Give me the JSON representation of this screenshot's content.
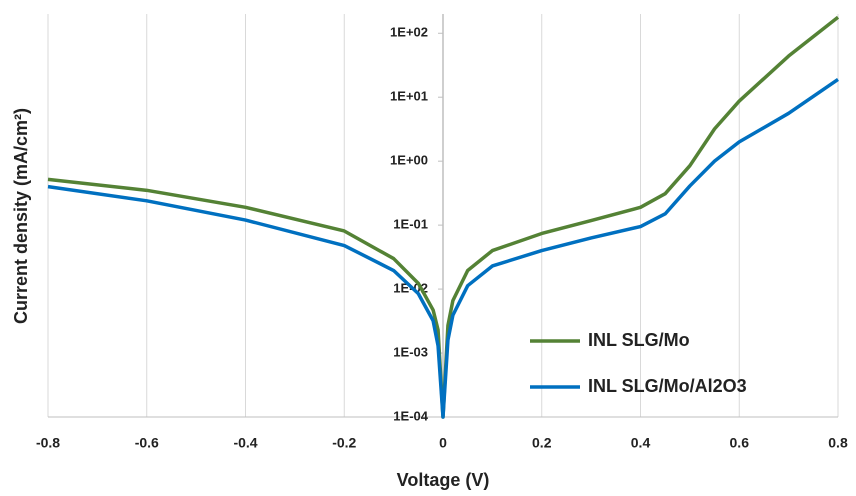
{
  "chart_data": {
    "type": "line",
    "x_label": "Voltage (V)",
    "y_label": "Current density (mA/cm²)",
    "x": [
      -0.8,
      -0.6,
      -0.4,
      -0.2,
      -0.1,
      -0.05,
      -0.02,
      -0.01,
      0,
      0.01,
      0.02,
      0.05,
      0.1,
      0.2,
      0.3,
      0.4,
      0.45,
      0.5,
      0.55,
      0.6,
      0.7,
      0.8
    ],
    "series": [
      {
        "name": "INL SLG/Mo",
        "color": "#548235",
        "values": [
          0.52,
          0.35,
          0.19,
          0.081,
          0.03,
          0.0123,
          0.0047,
          0.0023,
          0.0001,
          0.0027,
          0.0066,
          0.0195,
          0.04,
          0.074,
          0.118,
          0.19,
          0.31,
          0.85,
          3.2,
          8.7,
          44,
          178
        ]
      },
      {
        "name": "INL SLG/Mo/Al2O3",
        "color": "#0070c0",
        "values": [
          0.4,
          0.24,
          0.12,
          0.048,
          0.0195,
          0.0085,
          0.0032,
          0.0013,
          0.0001,
          0.0016,
          0.0039,
          0.0113,
          0.023,
          0.04,
          0.063,
          0.095,
          0.15,
          0.41,
          1.0,
          2.0,
          5.6,
          19
        ]
      }
    ],
    "xlim": [
      -0.8,
      0.8
    ],
    "xticks": [
      -0.8,
      -0.6,
      -0.4,
      -0.2,
      0,
      0.2,
      0.4,
      0.6,
      0.8
    ],
    "ylim": [
      0.0001,
      200
    ],
    "yticks": [
      {
        "value": 0.0001,
        "label": "1E-04"
      },
      {
        "value": 0.001,
        "label": "1E-03"
      },
      {
        "value": 0.01,
        "label": "1E-02"
      },
      {
        "value": 0.1,
        "label": "1E-01"
      },
      {
        "value": 1,
        "label": "1E+00"
      },
      {
        "value": 10,
        "label": "1E+01"
      },
      {
        "value": 100,
        "label": "1E+02"
      }
    ],
    "log_y": true,
    "grid": true,
    "legend": "lower right"
  }
}
